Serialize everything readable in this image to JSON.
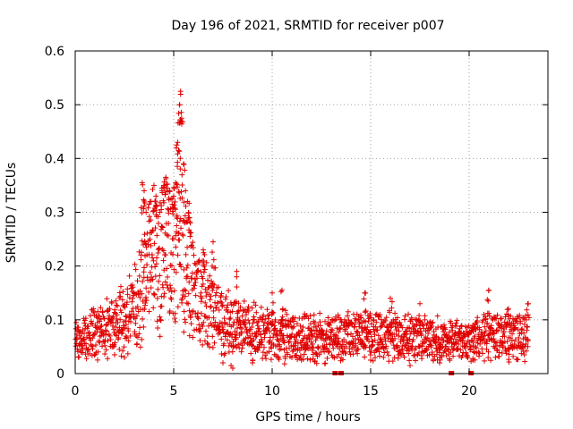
{
  "chart_data": {
    "type": "scatter",
    "title": "Day 196 of 2021, SRMTID for receiver p007",
    "xlabel": "GPS time / hours",
    "ylabel": "SRMTID / TECUs",
    "xlim": [
      0,
      24
    ],
    "ylim": [
      0,
      0.6
    ],
    "xticks": [
      0,
      5,
      10,
      15,
      20
    ],
    "yticks": [
      0,
      0.1,
      0.2,
      0.3,
      0.4,
      0.5,
      0.6
    ],
    "xtick_labels": [
      "0",
      "5",
      "10",
      "15",
      "20"
    ],
    "ytick_labels": [
      "0",
      "0.1",
      "0.2",
      "0.3",
      "0.4",
      "0.5",
      "0.6"
    ],
    "grid": true,
    "marker": "+",
    "color": "#e00000",
    "series": [
      {
        "name": "SRMTID",
        "baseline_profile": [
          [
            0.0,
            0.065
          ],
          [
            0.5,
            0.07
          ],
          [
            1.0,
            0.075
          ],
          [
            1.5,
            0.085
          ],
          [
            2.0,
            0.095
          ],
          [
            2.5,
            0.1
          ],
          [
            3.0,
            0.12
          ],
          [
            3.5,
            0.17
          ],
          [
            4.0,
            0.2
          ],
          [
            4.5,
            0.23
          ],
          [
            5.0,
            0.22
          ],
          [
            5.3,
            0.26
          ],
          [
            5.6,
            0.2
          ],
          [
            6.0,
            0.16
          ],
          [
            6.5,
            0.14
          ],
          [
            7.0,
            0.12
          ],
          [
            7.5,
            0.1
          ],
          [
            8.0,
            0.09
          ],
          [
            9.0,
            0.08
          ],
          [
            10.0,
            0.07
          ],
          [
            12.0,
            0.065
          ],
          [
            14.0,
            0.07
          ],
          [
            16.0,
            0.07
          ],
          [
            18.0,
            0.065
          ],
          [
            20.0,
            0.06
          ],
          [
            21.0,
            0.07
          ],
          [
            23.0,
            0.07
          ]
        ],
        "peaks": [
          [
            3.4,
            0.355
          ],
          [
            3.5,
            0.34
          ],
          [
            3.6,
            0.3
          ],
          [
            3.8,
            0.32
          ],
          [
            4.0,
            0.35
          ],
          [
            4.1,
            0.33
          ],
          [
            4.3,
            0.3
          ],
          [
            4.4,
            0.345
          ],
          [
            4.5,
            0.35
          ],
          [
            4.6,
            0.365
          ],
          [
            4.8,
            0.34
          ],
          [
            5.0,
            0.33
          ],
          [
            5.1,
            0.355
          ],
          [
            5.2,
            0.43
          ],
          [
            5.25,
            0.415
          ],
          [
            5.3,
            0.5
          ],
          [
            5.35,
            0.525
          ],
          [
            5.4,
            0.475
          ],
          [
            5.5,
            0.39
          ],
          [
            5.6,
            0.34
          ],
          [
            5.7,
            0.32
          ],
          [
            5.8,
            0.29
          ],
          [
            6.5,
            0.23
          ],
          [
            7.0,
            0.245
          ],
          [
            8.2,
            0.19
          ],
          [
            10.0,
            0.15
          ],
          [
            10.5,
            0.155
          ],
          [
            14.7,
            0.15
          ],
          [
            16.0,
            0.14
          ],
          [
            17.5,
            0.13
          ],
          [
            21.0,
            0.155
          ],
          [
            22.0,
            0.12
          ],
          [
            23.0,
            0.13
          ]
        ],
        "lows": [
          [
            2.0,
            0.035
          ],
          [
            2.5,
            0.03
          ],
          [
            7.5,
            0.02
          ],
          [
            8.0,
            0.01
          ],
          [
            9.0,
            0.02
          ],
          [
            11.0,
            0.03
          ],
          [
            15.0,
            0.025
          ],
          [
            17.0,
            0.015
          ],
          [
            18.5,
            0.02
          ],
          [
            20.2,
            0.025
          ]
        ]
      }
    ],
    "data_gaps_hours": [
      13.2,
      13.5,
      19.1,
      20.1
    ]
  }
}
